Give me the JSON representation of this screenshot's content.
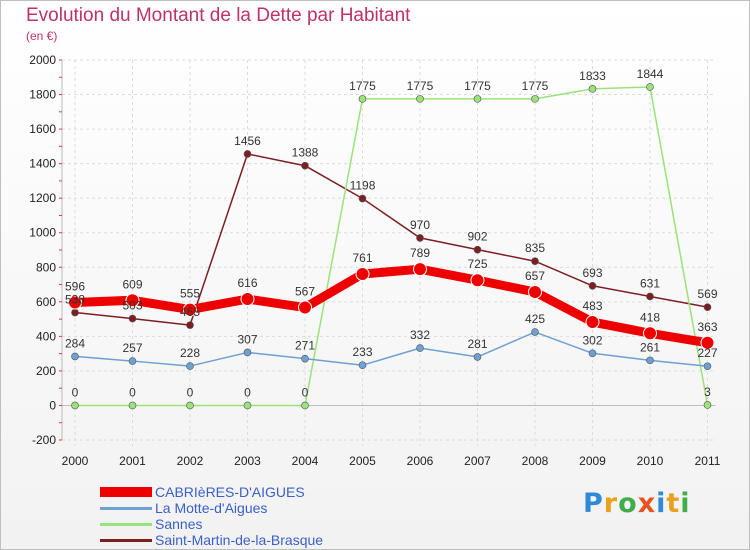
{
  "title": "Evolution du Montant de la Dette par Habitant",
  "subtitle": "(en €)",
  "logo": {
    "text": "Proxiti",
    "letter_colors": [
      "#2e8ad8",
      "#e8a21f",
      "#3fae49",
      "#e8541f",
      "#2e8ad8",
      "#e8a21f",
      "#3fae49"
    ]
  },
  "chart_data": {
    "type": "line",
    "title": "Evolution du Montant de la Dette par Habitant",
    "subtitle": "(en €)",
    "xlabel": "",
    "ylabel": "",
    "categories": [
      "2000",
      "2001",
      "2002",
      "2003",
      "2004",
      "2005",
      "2006",
      "2007",
      "2008",
      "2009",
      "2010",
      "2011"
    ],
    "ylim": [
      -200,
      2000
    ],
    "yticks": [
      -200,
      0,
      200,
      400,
      600,
      800,
      1000,
      1200,
      1400,
      1600,
      1800,
      2000
    ],
    "grid": true,
    "legend_position": "bottom-left",
    "series": [
      {
        "name": "Saint-Martin-de-la-Brasque",
        "color": "#7b1f22",
        "thick": false,
        "label_placement": "above",
        "values": [
          538,
          503,
          465,
          1456,
          1388,
          1198,
          970,
          902,
          835,
          693,
          631,
          569
        ],
        "labels": [
          "538",
          "503",
          "465",
          "1456",
          "1388",
          "1198",
          "970",
          "902",
          "835",
          "693",
          "631",
          "569"
        ]
      },
      {
        "name": "Sannes",
        "color": "#9be27b",
        "thick": false,
        "label_placement": "above",
        "values": [
          0,
          0,
          0,
          0,
          0,
          1775,
          1775,
          1775,
          1775,
          1833,
          1844,
          3
        ],
        "labels": [
          "0",
          "0",
          "0",
          "0",
          "0",
          "1775",
          "1775",
          "1775",
          "1775",
          "1833",
          "1844",
          "3"
        ]
      },
      {
        "name": "La Motte-d'Aigues",
        "color": "#6ea0d2",
        "thick": false,
        "label_placement": "above",
        "values": [
          284,
          257,
          228,
          307,
          271,
          233,
          332,
          281,
          425,
          302,
          261,
          227
        ],
        "labels": [
          "284",
          "257",
          "228",
          "307",
          "271",
          "233",
          "332",
          "281",
          "425",
          "302",
          "261",
          "227"
        ]
      },
      {
        "name": "CABRIèRES-D'AIGUES",
        "color": "#ee0000",
        "thick": true,
        "label_placement": "above",
        "values": [
          596,
          609,
          555,
          616,
          567,
          761,
          789,
          725,
          657,
          483,
          418,
          363
        ],
        "labels": [
          "596",
          "609",
          "555",
          "616",
          "567",
          "761",
          "789",
          "725",
          "657",
          "483",
          "418",
          "363"
        ]
      }
    ],
    "legend": [
      {
        "name": "CABRIèRES-D'AIGUES",
        "color": "#ee0000",
        "thick": true
      },
      {
        "name": "La Motte-d'Aigues",
        "color": "#6ea0d2",
        "thick": false
      },
      {
        "name": "Sannes",
        "color": "#9be27b",
        "thick": false
      },
      {
        "name": "Saint-Martin-de-la-Brasque",
        "color": "#7b1f22",
        "thick": false
      }
    ]
  }
}
